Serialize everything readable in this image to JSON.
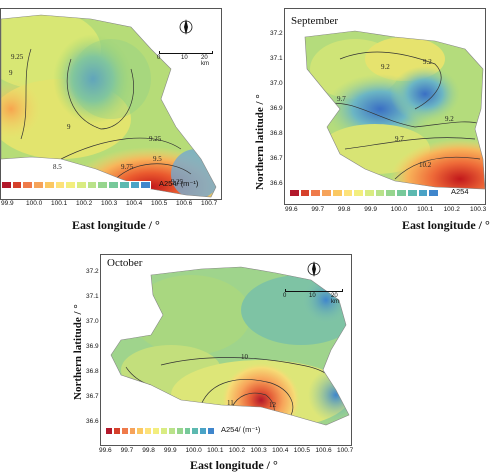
{
  "panels": [
    {
      "month": "",
      "x_axis_label": "East longitude / °",
      "x_ticks": [
        "99.9",
        "100.0",
        "100.1",
        "100.2",
        "100.3",
        "100.4",
        "100.5",
        "100.6",
        "100.7"
      ],
      "y_axis_label": "",
      "y_ticks": [],
      "legend_unit": "A254/ (m⁻¹)",
      "contours": [
        "9.25",
        "9",
        "9",
        "9.25",
        "9.75",
        "9.5",
        "8.5",
        "9.25"
      ],
      "scale_bar": [
        "0",
        "10",
        "20 km"
      ],
      "north": "N"
    },
    {
      "month": "September",
      "x_axis_label": "East longitude / °",
      "x_ticks": [
        "99.6",
        "99.7",
        "99.8",
        "99.9",
        "100.0",
        "100.1",
        "100.2",
        "100.3"
      ],
      "y_axis_label": "Northern latitude / °",
      "y_ticks": [
        "37.2",
        "37.1",
        "37.0",
        "36.9",
        "36.8",
        "36.7",
        "36.6"
      ],
      "legend_unit": "A254",
      "contours": [
        "9.2",
        "9.2",
        "9.7",
        "9.2",
        "9.7",
        "10.2"
      ],
      "scale_bar": [],
      "north": ""
    },
    {
      "month": "October",
      "x_axis_label": "East longitude / °",
      "x_ticks": [
        "99.6",
        "99.7",
        "99.8",
        "99.9",
        "100.0",
        "100.1",
        "100.2",
        "100.3",
        "100.4",
        "100.5",
        "100.6",
        "100.7"
      ],
      "y_axis_label": "Northern latitude / °",
      "y_ticks": [
        "37.2",
        "37.1",
        "37.0",
        "36.9",
        "36.8",
        "36.7",
        "36.6"
      ],
      "legend_unit": "A254/ (m⁻¹)",
      "contours": [
        "10",
        "11",
        "12"
      ],
      "scale_bar": [
        "0",
        "10",
        "20 km"
      ],
      "north": "N"
    }
  ],
  "colors": {
    "low": "#4a8fd6",
    "mid": "#a6d96a",
    "high": "#d7301f",
    "legend": [
      "#b2182b",
      "#d6402b",
      "#ef7a4a",
      "#f6a35a",
      "#fbc862",
      "#fde27a",
      "#f3ee7e",
      "#d9ec82",
      "#b9e28a",
      "#96d58e",
      "#77c99a",
      "#5cb9b0",
      "#4aa3c6",
      "#3f86cc"
    ]
  }
}
